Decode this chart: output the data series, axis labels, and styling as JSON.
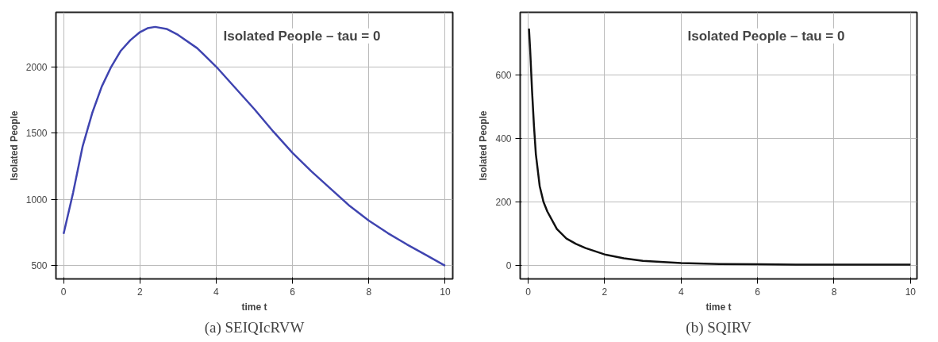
{
  "chart_data": [
    {
      "type": "line",
      "title": "Isolated People – tau = 0",
      "xlabel": "time t",
      "ylabel": "Isolated People",
      "annotations": [
        "(a) SEIQIcRVW"
      ],
      "x": [
        0,
        0.25,
        0.5,
        0.75,
        1,
        1.25,
        1.5,
        1.75,
        2,
        2.2,
        2.4,
        2.7,
        3,
        3.5,
        4,
        4.5,
        5,
        5.5,
        6,
        6.5,
        7,
        7.5,
        8,
        8.5,
        9,
        9.5,
        10
      ],
      "series": [
        {
          "color": "#3f44b0",
          "values": [
            740,
            1050,
            1400,
            1650,
            1850,
            2000,
            2120,
            2200,
            2260,
            2290,
            2300,
            2285,
            2240,
            2140,
            2000,
            1840,
            1680,
            1510,
            1350,
            1210,
            1080,
            950,
            840,
            745,
            660,
            580,
            500
          ]
        }
      ],
      "xlim": [
        -0.2,
        10.2
      ],
      "ylim": [
        400,
        2410
      ],
      "xticks": [
        0,
        2,
        4,
        6,
        8,
        10
      ],
      "yticks": [
        500,
        1000,
        1500,
        2000
      ],
      "grid": true
    },
    {
      "type": "line",
      "title": "Isolated People – tau = 0",
      "xlabel": "time t",
      "ylabel": "Isolated People",
      "annotations": [
        "(b) SQIRV"
      ],
      "x": [
        0.02,
        0.05,
        0.1,
        0.15,
        0.2,
        0.3,
        0.4,
        0.5,
        0.75,
        1,
        1.25,
        1.5,
        2,
        2.5,
        3,
        4,
        5,
        6,
        7,
        8,
        9,
        10
      ],
      "series": [
        {
          "color": "#111111",
          "values": [
            745,
            680,
            550,
            440,
            350,
            250,
            200,
            170,
            115,
            85,
            68,
            55,
            35,
            23,
            15,
            8,
            5,
            4,
            3,
            3,
            3,
            3
          ]
        }
      ],
      "xlim": [
        -0.21,
        10.17
      ],
      "ylim": [
        -42,
        796
      ],
      "xticks": [
        0,
        2,
        4,
        6,
        8,
        10
      ],
      "yticks": [
        0,
        200,
        400,
        600
      ],
      "grid": true
    }
  ]
}
